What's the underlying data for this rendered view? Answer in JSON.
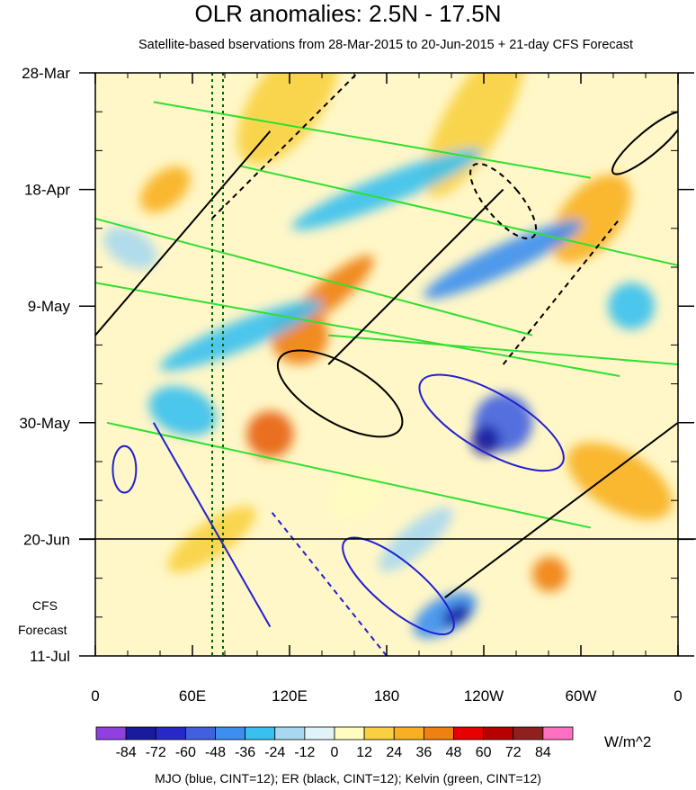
{
  "chart_data": {
    "type": "heatmap",
    "title": "OLR anomalies: 2.5N - 17.5N",
    "subtitle": "Satellite-based bservations from 28-Mar-2015 to 20-Jun-2015 + 21-day CFS Forecast",
    "x_ticks": [
      "0",
      "60E",
      "120E",
      "180",
      "120W",
      "60W",
      "0"
    ],
    "y_ticks": [
      "28-Mar",
      "18-Apr",
      "9-May",
      "30-May",
      "20-Jun",
      "11-Jul"
    ],
    "forecast_label_line1": "CFS",
    "forecast_label_line2": "Forecast",
    "observation_end": "20-Jun",
    "colorbar": {
      "levels": [
        "-84",
        "-72",
        "-60",
        "-48",
        "-36",
        "-24",
        "-12",
        "0",
        "12",
        "24",
        "36",
        "48",
        "60",
        "72",
        "84"
      ],
      "colors": [
        "#9040e0",
        "#1a1a9e",
        "#2828c8",
        "#4060e0",
        "#3c8ef0",
        "#38c0f0",
        "#a8d8f0",
        "#e0f4f8",
        "#fffcc0",
        "#f8d040",
        "#f8b020",
        "#f08010",
        "#e80000",
        "#b80000",
        "#902020",
        "#ff70c0"
      ],
      "units": "W/m^2"
    },
    "legend_text": "MJO (blue, CINT=12); ER (black, CINT=12); Kelvin (green, CINT=12)",
    "contours": {
      "mjo_color": "#2020d0",
      "er_color": "#000000",
      "kelvin_color": "#30e030"
    }
  }
}
